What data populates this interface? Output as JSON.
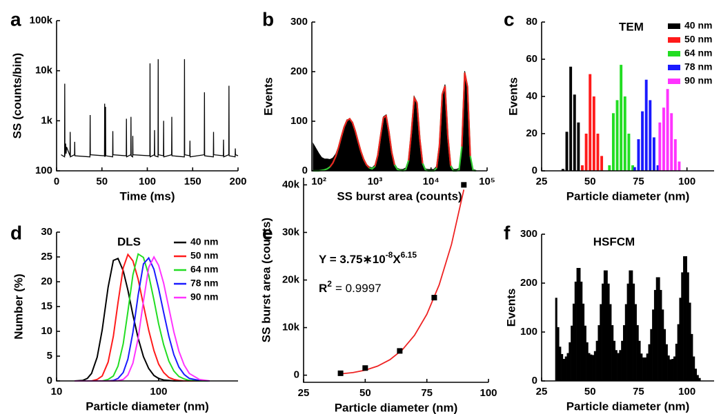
{
  "chart_data": [
    {
      "panel_label": "a",
      "type": "line",
      "xlabel": "Time (ms)",
      "ylabel": "SS (counts/bin)",
      "yscale": "log",
      "xlim": [
        0,
        200
      ],
      "xticks": [
        0,
        50,
        100,
        150,
        200
      ],
      "ylim": [
        100,
        100000
      ],
      "yticks": [
        100,
        {
          "value": 1000,
          "label": "1k"
        },
        {
          "value": 10000,
          "label": "10k"
        },
        {
          "value": 100000,
          "label": "100k"
        }
      ],
      "color": "#000000",
      "x": [
        5,
        8.8,
        9,
        9.2,
        10,
        10.5,
        11,
        14.8,
        15,
        15.2,
        19.8,
        20,
        20.2,
        36.8,
        37,
        37.2,
        52.8,
        53,
        53.2,
        53.8,
        54,
        54.2,
        61.8,
        62,
        62.2,
        76.8,
        77,
        77.2,
        81.8,
        82,
        82.2,
        83.8,
        84,
        84.2,
        102.8,
        103,
        103.2,
        107.8,
        108,
        108.2,
        111.8,
        112,
        112.2,
        117.8,
        118,
        118.2,
        126.8,
        127,
        127.2,
        140.8,
        141,
        141.2,
        146.8,
        147,
        147.2,
        162.8,
        163,
        163.2,
        172.8,
        173,
        173.2,
        183.8,
        184,
        184.2,
        189.8,
        190,
        190.2,
        196.8,
        197,
        197.2,
        200
      ],
      "values": [
        210,
        190,
        5500,
        200,
        350,
        220,
        300,
        200,
        600,
        190,
        210,
        380,
        200,
        190,
        1300,
        210,
        200,
        2200,
        190,
        210,
        1900,
        200,
        190,
        620,
        210,
        200,
        1100,
        190,
        210,
        1200,
        200,
        190,
        500,
        210,
        200,
        14000,
        190,
        210,
        650,
        200,
        190,
        17000,
        210,
        200,
        1000,
        190,
        210,
        1200,
        200,
        190,
        17000,
        210,
        200,
        400,
        190,
        210,
        3700,
        200,
        190,
        600,
        210,
        200,
        420,
        190,
        210,
        5000,
        200,
        190,
        280,
        210,
        200
      ]
    },
    {
      "panel_label": "b",
      "type": "area",
      "xlabel": "SS burst area (counts)",
      "ylabel": "Events",
      "xscale": "log",
      "xlim": [
        75,
        100000
      ],
      "xticks": [
        {
          "value": 100,
          "label": "10²"
        },
        {
          "value": 1000,
          "label": "10³"
        },
        {
          "value": 10000,
          "label": "10⁴"
        },
        {
          "value": 100000,
          "label": "10⁵"
        }
      ],
      "ylim": [
        0,
        300
      ],
      "yticks": [
        0,
        100,
        200,
        300
      ],
      "x": [
        79,
        89,
        100,
        112,
        126,
        141,
        158,
        178,
        200,
        224,
        251,
        282,
        316,
        355,
        398,
        447,
        501,
        562,
        631,
        708,
        794,
        891,
        1000,
        1122,
        1259,
        1413,
        1585,
        1778,
        1995,
        2239,
        2512,
        2818,
        3162,
        3548,
        3981,
        4467,
        5012,
        5623,
        6310,
        7079,
        7943,
        8913,
        10000,
        11220,
        12589,
        14125,
        15849,
        17783,
        19953,
        22387,
        25119,
        28184,
        31623,
        35481,
        39811,
        44668,
        50119,
        56234,
        63096
      ],
      "series": [
        {
          "color": "#000000",
          "fill": true,
          "values": [
            55,
            45,
            35,
            27,
            24,
            24,
            23,
            26,
            34,
            49,
            70,
            90,
            103,
            104,
            99,
            81,
            60,
            40,
            24,
            13,
            8,
            6,
            12,
            33,
            72,
            109,
            113,
            80,
            39,
            14,
            5,
            3,
            3,
            6,
            23,
            80,
            150,
            139,
            66,
            17,
            4,
            3,
            3,
            3,
            9,
            53,
            157,
            174,
            71,
            12,
            3,
            3,
            5,
            51,
            201,
            173,
            32,
            3,
            1
          ]
        },
        {
          "color": "#33cc33",
          "values": [
            0,
            0,
            0,
            1,
            2,
            4,
            8,
            16,
            29,
            47,
            68,
            88,
            101,
            105,
            97,
            80,
            59,
            39,
            23,
            12,
            6,
            4,
            9,
            31,
            70,
            107,
            111,
            78,
            37,
            12,
            3,
            1,
            0,
            3,
            21,
            78,
            147,
            137,
            64,
            15,
            2,
            0,
            0,
            0,
            6,
            51,
            154,
            171,
            69,
            10,
            0,
            0,
            2,
            49,
            198,
            170,
            30,
            1,
            0
          ]
        },
        {
          "color": "#ee2222",
          "values": [
            null,
            null,
            null,
            null,
            null,
            null,
            8,
            16,
            29,
            47,
            68,
            88,
            101,
            105,
            97,
            80,
            59,
            39,
            23,
            12,
            6,
            null,
            9,
            31,
            70,
            107,
            111,
            78,
            37,
            12,
            null,
            null,
            null,
            null,
            21,
            78,
            147,
            137,
            64,
            15,
            null,
            null,
            null,
            null,
            6,
            51,
            154,
            171,
            69,
            10,
            null,
            null,
            null,
            49,
            198,
            170,
            30,
            null,
            null
          ]
        }
      ]
    },
    {
      "panel_label": "c",
      "type": "bar",
      "title": "TEM",
      "xlabel": "Particle diameter (nm)",
      "ylabel": "Events",
      "legend": "upper right",
      "xlim": [
        25,
        114
      ],
      "xticks": [
        25,
        50,
        75,
        100
      ],
      "ylim": [
        0,
        80
      ],
      "yticks": [
        0,
        20,
        40,
        60,
        80
      ],
      "series": [
        {
          "name": "40 nm",
          "color": "#000000",
          "x": [
            36,
            38,
            40,
            42,
            44
          ],
          "values": [
            1,
            21,
            56,
            41,
            26
          ]
        },
        {
          "name": "50 nm",
          "color": "#ff1a1a",
          "x": [
            46,
            48,
            50,
            52,
            54,
            56
          ],
          "values": [
            3,
            20,
            52,
            40,
            20,
            8
          ]
        },
        {
          "name": "64 nm",
          "color": "#22dd22",
          "x": [
            60,
            62,
            64,
            66,
            68,
            70,
            72
          ],
          "values": [
            3,
            31,
            38,
            57,
            40,
            20,
            3
          ]
        },
        {
          "name": "78 nm",
          "color": "#1a1aff",
          "x": [
            73,
            75,
            77,
            79,
            81,
            83,
            85
          ],
          "values": [
            2,
            17,
            32,
            49,
            38,
            18,
            3
          ]
        },
        {
          "name": "90 nm",
          "color": "#ff33ff",
          "x": [
            86,
            88,
            90,
            92,
            94,
            96
          ],
          "values": [
            26,
            34,
            44,
            31,
            17,
            5
          ]
        }
      ]
    },
    {
      "panel_label": "d",
      "type": "line",
      "title": "DLS",
      "xlabel": "Particle diameter (nm)",
      "ylabel": "Number (%)",
      "xscale": "log",
      "legend": "upper right",
      "xlim": [
        10,
        600
      ],
      "xticks": [
        10,
        100
      ],
      "ylim": [
        0,
        30
      ],
      "yticks": [
        0,
        5,
        10,
        15,
        20,
        25,
        30
      ],
      "x": [
        15,
        18,
        20,
        22,
        25,
        28,
        32,
        36,
        40,
        45,
        50,
        56,
        63,
        71,
        80,
        90,
        100,
        112,
        126,
        141,
        158,
        178,
        200,
        251,
        316
      ],
      "series": [
        {
          "name": "40 nm",
          "color": "#000000",
          "values": [
            0,
            0.1,
            0.5,
            1.5,
            4.8,
            10.3,
            18.9,
            24.3,
            24.7,
            22.2,
            18.3,
            13.3,
            8.6,
            4.9,
            2.5,
            1.1,
            0.5,
            0.2,
            0.1,
            0,
            0,
            0,
            0,
            0,
            0
          ]
        },
        {
          "name": "50 nm",
          "color": "#ff1a1a",
          "values": [
            0,
            0,
            0,
            0,
            0.3,
            1.0,
            3.8,
            9.0,
            15.8,
            22.8,
            25.5,
            24.2,
            20.5,
            15.3,
            10.2,
            6.1,
            3.4,
            1.7,
            0.7,
            0.3,
            0.1,
            0,
            0,
            0,
            0
          ]
        },
        {
          "name": "64 nm",
          "color": "#22dd22",
          "values": [
            0,
            0,
            0,
            0,
            0,
            0,
            0.3,
            1.0,
            3.0,
            7.5,
            14,
            21.4,
            25.6,
            24.9,
            21.3,
            16.3,
            11.5,
            7.3,
            4.0,
            2.0,
            0.9,
            0.4,
            0.1,
            0,
            0
          ]
        },
        {
          "name": "78 nm",
          "color": "#1a1aff",
          "values": [
            0,
            0,
            0,
            0,
            0,
            0,
            0,
            0.1,
            0.5,
            1.7,
            4.4,
            9.8,
            17.3,
            23.6,
            24.8,
            22.5,
            18.6,
            13.8,
            9.0,
            5.3,
            2.8,
            1.3,
            0.5,
            0.1,
            0
          ]
        },
        {
          "name": "90 nm",
          "color": "#ff33ff",
          "values": [
            0,
            0,
            0,
            0,
            0,
            0,
            0,
            0,
            0.05,
            0.3,
            1.2,
            3.6,
            8.6,
            16.1,
            22.9,
            25,
            23.3,
            19.7,
            14.7,
            9.9,
            6.0,
            3.2,
            1.5,
            0.3,
            0
          ]
        }
      ]
    },
    {
      "panel_label": "e",
      "type": "scatter",
      "xlabel": "Particle diameter (nm)",
      "ylabel": "SS burst area (counts)",
      "xlim": [
        25,
        100
      ],
      "xticks": [
        25,
        50,
        75,
        100
      ],
      "ylim": [
        -1500,
        41500
      ],
      "yticks": [
        0,
        {
          "value": 10000,
          "label": "10k"
        },
        {
          "value": 20000,
          "label": "20k"
        },
        {
          "value": 30000,
          "label": "30k"
        },
        {
          "value": 40000,
          "label": "40k"
        }
      ],
      "color": "#000000",
      "x": [
        40,
        50,
        64,
        78,
        90
      ],
      "values": [
        400,
        1500,
        5100,
        16300,
        40000
      ],
      "fit": {
        "color": "#ee2222",
        "x": [
          40,
          45,
          50,
          55,
          60,
          65,
          70,
          75,
          80,
          85,
          90
        ],
        "values": [
          268,
          550,
          1057,
          1900,
          3244,
          5300,
          8393,
          12800,
          18985,
          27500,
          39000
        ]
      },
      "equation": {
        "base": "Y = 3.75∗10",
        "exponent": "-8",
        "variable": "X",
        "power": "6.15"
      },
      "r_squared": {
        "symbol": "R",
        "exponent": "2",
        "value": "= 0.9997"
      }
    },
    {
      "panel_label": "f",
      "type": "histogram",
      "title": "HSFCM",
      "xlabel": "Particle diameter (nm)",
      "ylabel": "Events",
      "xlim": [
        25,
        114
      ],
      "xticks": [
        25,
        50,
        75,
        100
      ],
      "ylim": [
        0,
        300
      ],
      "yticks": [
        0,
        100,
        200,
        300
      ],
      "color": "#000000",
      "bins": [
        32,
        33,
        34,
        35,
        36,
        37,
        38,
        39,
        40,
        41,
        42,
        43,
        44,
        45,
        46,
        47,
        48,
        49,
        50,
        51,
        52,
        53,
        54,
        55,
        56,
        57,
        58,
        59,
        60,
        61,
        62,
        63,
        64,
        65,
        66,
        67,
        68,
        69,
        70,
        71,
        72,
        73,
        74,
        75,
        76,
        77,
        78,
        79,
        80,
        81,
        82,
        83,
        84,
        85,
        86,
        87,
        88,
        89,
        90,
        91,
        92,
        93,
        94,
        95,
        96,
        97,
        98,
        99,
        100,
        101,
        102,
        103,
        104,
        105,
        106,
        107
      ],
      "values": [
        170,
        110,
        70,
        55,
        45,
        50,
        57,
        79,
        113,
        158,
        203,
        231,
        231,
        203,
        158,
        113,
        79,
        57,
        54,
        53,
        61,
        82,
        114,
        157,
        199,
        226,
        226,
        199,
        157,
        114,
        82,
        63,
        57,
        63,
        82,
        114,
        157,
        199,
        226,
        226,
        199,
        157,
        114,
        82,
        56,
        48,
        48,
        56,
        75,
        106,
        146,
        186,
        212,
        212,
        186,
        146,
        106,
        75,
        52,
        44,
        45,
        50,
        76,
        116,
        170,
        222,
        255,
        255,
        222,
        160,
        96,
        50,
        25,
        12,
        6
      ]
    }
  ]
}
